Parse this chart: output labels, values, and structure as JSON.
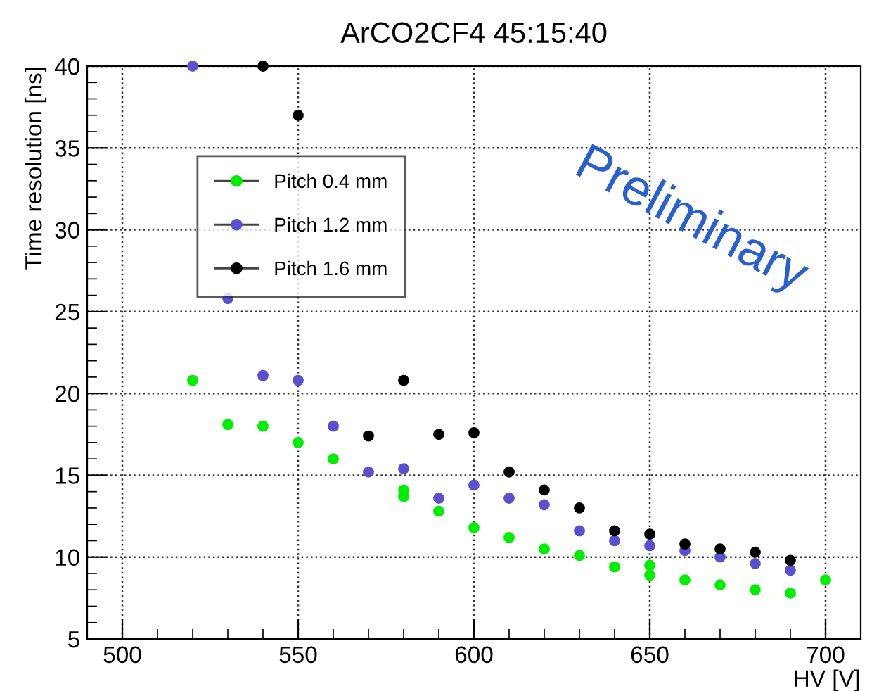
{
  "chart_data": {
    "type": "scatter",
    "title": "ArCO2CF4 45:15:40",
    "xlabel": "HV [V]",
    "ylabel": "Time resolution [ns]",
    "annotations": [
      "Preliminary"
    ],
    "series": [
      {
        "name": "Pitch 0.4 mm",
        "color": "#00ee00",
        "x": [
          520,
          530,
          540,
          550,
          560,
          580,
          580,
          590,
          600,
          610,
          620,
          630,
          640,
          650,
          650,
          660,
          670,
          680,
          690,
          700
        ],
        "values": [
          20.8,
          18.1,
          18.0,
          17.0,
          16.0,
          14.1,
          13.7,
          12.8,
          11.8,
          11.2,
          10.5,
          10.1,
          9.4,
          9.5,
          8.9,
          8.6,
          8.3,
          8.0,
          7.8,
          8.6
        ]
      },
      {
        "name": "Pitch 1.2 mm",
        "color": "#5a50d0",
        "x": [
          520,
          530,
          540,
          550,
          560,
          570,
          580,
          590,
          600,
          610,
          620,
          630,
          640,
          650,
          660,
          670,
          680,
          690
        ],
        "values": [
          40,
          25.8,
          21.1,
          20.8,
          18.0,
          15.2,
          15.4,
          13.6,
          14.4,
          13.6,
          13.2,
          11.6,
          11.0,
          10.7,
          10.4,
          10.0,
          9.6,
          9.2
        ]
      },
      {
        "name": "Pitch 1.6 mm",
        "color": "#000000",
        "x": [
          540,
          550,
          570,
          580,
          590,
          600,
          610,
          620,
          630,
          640,
          650,
          660,
          670,
          680,
          690
        ],
        "values": [
          40,
          37.0,
          17.4,
          20.8,
          17.5,
          17.6,
          15.2,
          14.1,
          13.0,
          11.6,
          11.4,
          10.8,
          10.5,
          10.3,
          9.8
        ]
      }
    ],
    "xlim": [
      490,
      710
    ],
    "ylim": [
      5,
      40
    ],
    "xticks": [
      500,
      550,
      600,
      650,
      700
    ],
    "yticks": [
      5,
      10,
      15,
      20,
      25,
      30,
      35,
      40
    ],
    "grid": true,
    "legend": "top left",
    "marker": "circle"
  }
}
